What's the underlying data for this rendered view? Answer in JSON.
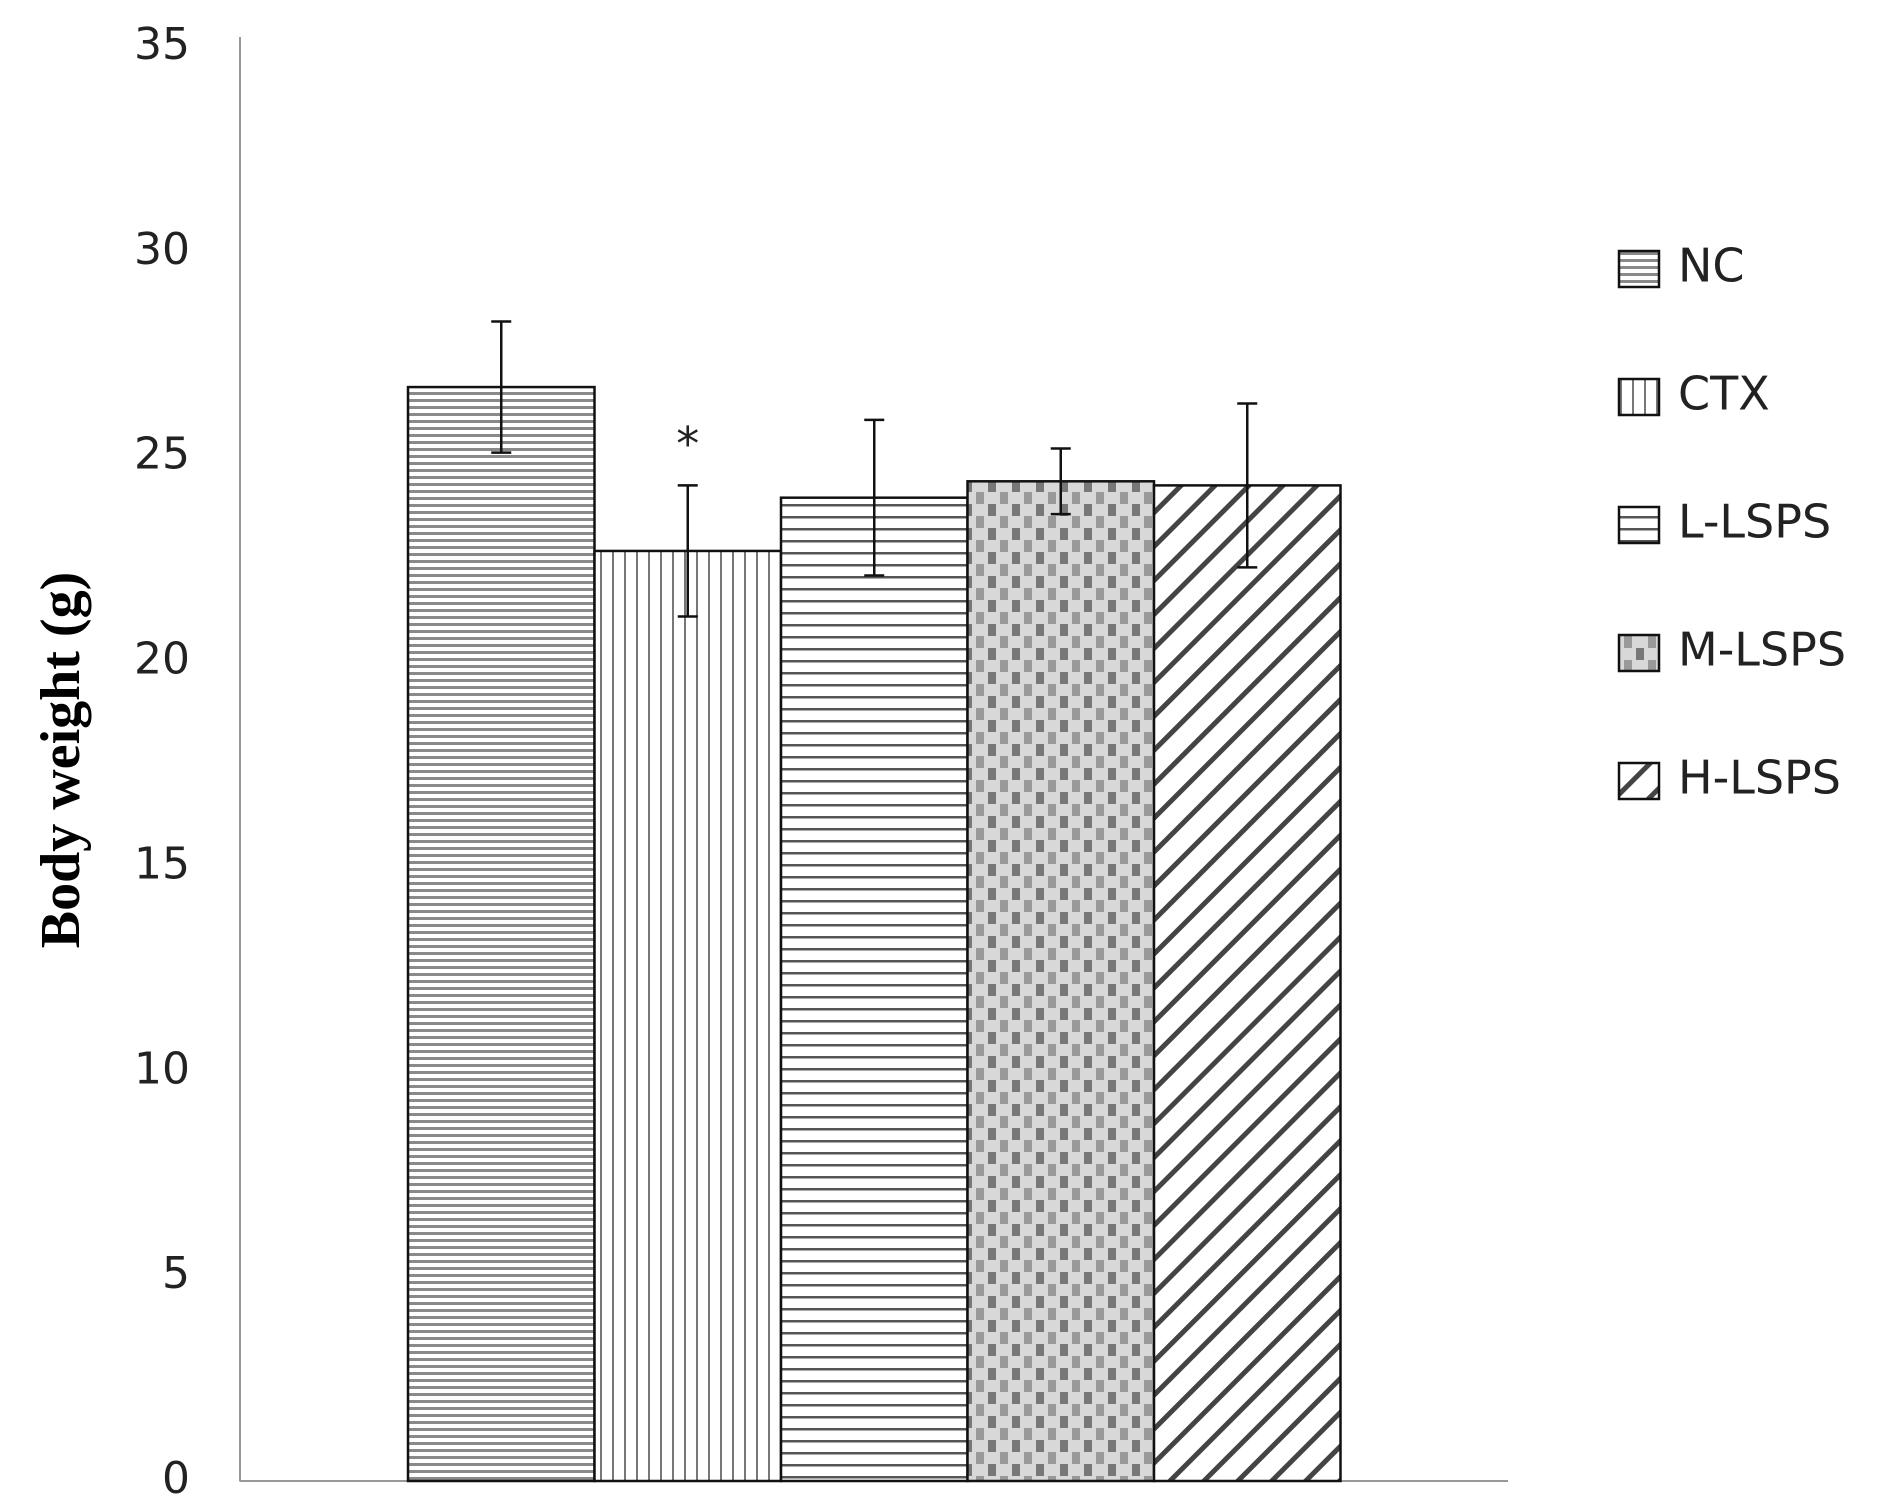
{
  "chart_data": {
    "type": "bar",
    "y_label": "Body weight (g)",
    "ylim": [
      0,
      35
    ],
    "yticks": [
      0,
      5,
      10,
      15,
      20,
      25,
      30,
      35
    ],
    "series": [
      {
        "name": "NC",
        "values": [
          26.7
        ],
        "errors": [
          1.6
        ],
        "pattern": "fine-horizontal"
      },
      {
        "name": "CTX",
        "values": [
          22.7
        ],
        "errors": [
          1.6
        ],
        "pattern": "vertical"
      },
      {
        "name": "L-LSPS",
        "values": [
          24.0
        ],
        "errors": [
          1.9
        ],
        "pattern": "horizontal"
      },
      {
        "name": "M-LSPS",
        "values": [
          24.4
        ],
        "errors": [
          0.8
        ],
        "pattern": "checker"
      },
      {
        "name": "H-LSPS",
        "values": [
          24.3
        ],
        "errors": [
          2.0
        ],
        "pattern": "diagonal"
      }
    ],
    "annotations": [
      {
        "text": "*",
        "series": "CTX"
      }
    ],
    "legend": "right"
  }
}
